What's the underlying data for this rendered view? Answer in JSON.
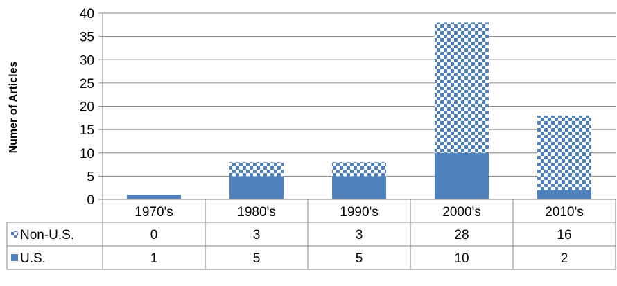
{
  "chart_data": {
    "type": "bar",
    "stacked": true,
    "ylabel": "Numer of Articles",
    "xlabel": "",
    "ylim": [
      0,
      40
    ],
    "yticks": [
      0,
      5,
      10,
      15,
      20,
      25,
      30,
      35,
      40
    ],
    "categories": [
      "1970's",
      "1980's",
      "1990's",
      "2000's",
      "2010's"
    ],
    "series": [
      {
        "name": "U.S.",
        "values": [
          1,
          5,
          5,
          10,
          2
        ],
        "color": "#4f81bd",
        "pattern": "solid"
      },
      {
        "name": "Non-U.S.",
        "values": [
          0,
          3,
          3,
          28,
          16
        ],
        "color": "#4f81bd",
        "pattern": "checkerboard"
      }
    ],
    "data_table": true,
    "table_row_order": [
      "Non-U.S.",
      "U.S."
    ],
    "grid": true,
    "legend": "data-table"
  }
}
